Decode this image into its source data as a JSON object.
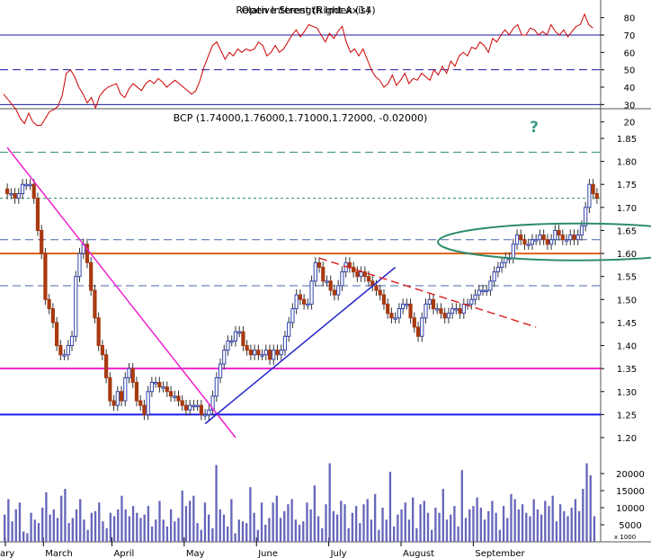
{
  "chart_data": [
    {
      "type": "line",
      "title": "Relative Strength Index (14)",
      "overlay_title": "Open Interest (Right Axis)",
      "ylim": [
        10,
        85
      ],
      "yticks": [
        20,
        30,
        40,
        50,
        60,
        70,
        80
      ],
      "reference_lines": [
        {
          "value": 70,
          "style": "solid"
        },
        {
          "value": 50,
          "style": "dashed"
        },
        {
          "value": 30,
          "style": "solid"
        }
      ],
      "series": [
        {
          "color": "#cc0000",
          "values": [
            36,
            33,
            30,
            27,
            22,
            19,
            25,
            20,
            18,
            18,
            22,
            26,
            27,
            29,
            35,
            48,
            50,
            46,
            40,
            36,
            31,
            34,
            28,
            35,
            38,
            40,
            41,
            42,
            36,
            34,
            39,
            42,
            40,
            38,
            42,
            44,
            42,
            45,
            43,
            40,
            42,
            44,
            42,
            40,
            38,
            36,
            38,
            44,
            52,
            58,
            64,
            66,
            61,
            56,
            60,
            58,
            62,
            60,
            62,
            61,
            62,
            66,
            64,
            58,
            60,
            64,
            60,
            62,
            66,
            70,
            73,
            69,
            72,
            76,
            75,
            74,
            70,
            66,
            71,
            68,
            72,
            75,
            66,
            60,
            62,
            58,
            62,
            56,
            50,
            46,
            44,
            40,
            42,
            47,
            41,
            44,
            48,
            42,
            45,
            44,
            48,
            46,
            44,
            50,
            47,
            52,
            48,
            55,
            52,
            58,
            60,
            58,
            63,
            62,
            66,
            64,
            60,
            68,
            66,
            70,
            73,
            70,
            74,
            76,
            70,
            70,
            74,
            73,
            70,
            72,
            70,
            76,
            72,
            70,
            73,
            69,
            72,
            75,
            76,
            82,
            76,
            74
          ]
        }
      ]
    },
    {
      "type": "candlestick",
      "title": "BCP (1.74000,1.76000,1.71000,1.72000, -0.02000)",
      "annotation": "?",
      "ylim": [
        1.17,
        1.89
      ],
      "yticks": [
        1.2,
        1.25,
        1.3,
        1.35,
        1.4,
        1.45,
        1.5,
        1.55,
        1.6,
        1.65,
        1.7,
        1.75,
        1.8,
        1.85
      ],
      "x_labels": [
        "ary",
        "March",
        "April",
        "May",
        "June",
        "July",
        "August",
        "September"
      ],
      "horizontal_levels": [
        {
          "value": 1.82,
          "color": "#2e8b6a",
          "style": "dashed"
        },
        {
          "value": 1.72,
          "color": "#2e8b6a",
          "style": "dotted"
        },
        {
          "value": 1.63,
          "color": "#4466aa",
          "style": "dashed"
        },
        {
          "value": 1.6,
          "color": "#e06010",
          "style": "solid"
        },
        {
          "value": 1.53,
          "color": "#4466aa",
          "style": "dashed"
        },
        {
          "value": 1.35,
          "color": "#ee22cc",
          "style": "solid"
        },
        {
          "value": 1.25,
          "color": "#1a1aee",
          "style": "solid"
        }
      ],
      "trend_lines": [
        {
          "color": "#ee22cc",
          "style": "solid",
          "from": [
            0,
            1.83
          ],
          "to": [
            60,
            1.2
          ]
        },
        {
          "color": "#2222cc",
          "style": "solid",
          "from": [
            52,
            1.23
          ],
          "to": [
            102,
            1.57
          ]
        },
        {
          "color": "#dd2222",
          "style": "dashed",
          "from": [
            82,
            1.59
          ],
          "to": [
            139,
            1.44
          ]
        }
      ],
      "highlight_ellipse": {
        "color": "#2e8b6a",
        "center": [
          150,
          1.625
        ],
        "radius": [
          16,
          0.04
        ]
      },
      "closes": [
        1.73,
        1.73,
        1.72,
        1.73,
        1.75,
        1.75,
        1.75,
        1.72,
        1.65,
        1.6,
        1.5,
        1.48,
        1.45,
        1.4,
        1.38,
        1.38,
        1.4,
        1.42,
        1.55,
        1.6,
        1.62,
        1.58,
        1.52,
        1.46,
        1.4,
        1.38,
        1.33,
        1.28,
        1.27,
        1.3,
        1.28,
        1.33,
        1.35,
        1.32,
        1.28,
        1.27,
        1.25,
        1.3,
        1.32,
        1.32,
        1.31,
        1.31,
        1.3,
        1.29,
        1.29,
        1.28,
        1.27,
        1.26,
        1.27,
        1.27,
        1.27,
        1.25,
        1.25,
        1.26,
        1.29,
        1.33,
        1.36,
        1.39,
        1.41,
        1.41,
        1.43,
        1.43,
        1.4,
        1.39,
        1.38,
        1.39,
        1.38,
        1.38,
        1.39,
        1.37,
        1.39,
        1.38,
        1.39,
        1.42,
        1.45,
        1.48,
        1.51,
        1.5,
        1.49,
        1.49,
        1.54,
        1.58,
        1.57,
        1.54,
        1.54,
        1.52,
        1.51,
        1.53,
        1.56,
        1.58,
        1.57,
        1.56,
        1.55,
        1.56,
        1.55,
        1.54,
        1.53,
        1.52,
        1.51,
        1.49,
        1.47,
        1.46,
        1.46,
        1.48,
        1.49,
        1.49,
        1.46,
        1.44,
        1.42,
        1.46,
        1.49,
        1.5,
        1.48,
        1.48,
        1.47,
        1.46,
        1.47,
        1.48,
        1.48,
        1.47,
        1.49,
        1.49,
        1.5,
        1.51,
        1.52,
        1.52,
        1.52,
        1.54,
        1.56,
        1.57,
        1.58,
        1.59,
        1.59,
        1.62,
        1.64,
        1.63,
        1.62,
        1.62,
        1.63,
        1.63,
        1.64,
        1.63,
        1.62,
        1.63,
        1.65,
        1.64,
        1.63,
        1.63,
        1.64,
        1.63,
        1.64,
        1.66,
        1.7,
        1.75,
        1.73,
        1.72
      ]
    },
    {
      "type": "bar",
      "title": "Volume",
      "ylim": [
        0,
        25000
      ],
      "yticks": [
        5000,
        10000,
        15000,
        20000
      ],
      "scale_label": "x 1000",
      "color": "#6666bb",
      "values": [
        8000,
        12500,
        6000,
        9500,
        11500,
        3000,
        2500,
        8500,
        6500,
        5500,
        10000,
        14500,
        8000,
        9500,
        7000,
        13500,
        15500,
        5500,
        7000,
        9500,
        12500,
        6500,
        3500,
        8500,
        9000,
        11500,
        6000,
        4000,
        8500,
        7500,
        9500,
        13500,
        9500,
        7500,
        10500,
        8500,
        7000,
        8000,
        10500,
        4500,
        6500,
        12000,
        6500,
        4500,
        9500,
        6000,
        7000,
        15000,
        10500,
        12000,
        13500,
        5500,
        3500,
        11500,
        8000,
        4000,
        22500,
        9500,
        8000,
        4500,
        12500,
        2500,
        6500,
        6000,
        5500,
        16000,
        8500,
        3500,
        11500,
        5000,
        7000,
        11500,
        13500,
        7000,
        9000,
        11000,
        12500,
        6500,
        5000,
        6000,
        11500,
        9500,
        16500,
        7500,
        4000,
        11000,
        23000,
        9000,
        8000,
        12000,
        11000,
        4000,
        8500,
        10500,
        5500,
        11000,
        12500,
        6500,
        14000,
        3500,
        10000,
        6500,
        20500,
        4500,
        8000,
        9500,
        11500,
        6500,
        13000,
        4000,
        11000,
        12000,
        8500,
        3500,
        10000,
        8500,
        15500,
        6500,
        8000,
        10500,
        4500,
        21000,
        7000,
        9500,
        10500,
        13000,
        10000,
        6500,
        9000,
        12000,
        8500,
        3500,
        10500,
        7000,
        14000,
        12500,
        9500,
        11000,
        8500,
        7500,
        12500,
        9500,
        8000,
        12000,
        10500,
        13500,
        6000,
        11000,
        9000,
        7500,
        10000,
        12500,
        9000,
        15500,
        23000,
        19500,
        7500
      ]
    }
  ]
}
